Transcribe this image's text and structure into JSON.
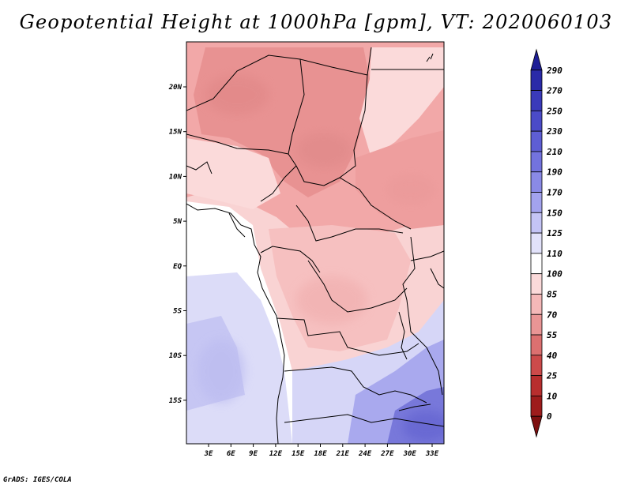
{
  "title": "Geopotential Height at 1000hPa [gpm], VT: 2020060103",
  "footer": "GrADS: IGES/COLA",
  "map": {
    "lat_labels": [
      "20N",
      "15N",
      "10N",
      "5N",
      "EQ",
      "5S",
      "10S",
      "15S"
    ],
    "lon_labels": [
      "3E",
      "6E",
      "9E",
      "12E",
      "15E",
      "18E",
      "21E",
      "24E",
      "27E",
      "30E",
      "33E"
    ]
  },
  "colorbar": {
    "levels": [
      "290",
      "270",
      "250",
      "230",
      "210",
      "190",
      "170",
      "150",
      "125",
      "110",
      "100",
      "85",
      "70",
      "55",
      "40",
      "25",
      "10",
      "0"
    ],
    "colors": [
      "#1e1e96",
      "#2a2aa8",
      "#3a3aba",
      "#4b4bc8",
      "#5e5ed4",
      "#7373de",
      "#8a8ae6",
      "#a3a3ee",
      "#c4c4f5",
      "#e2e2fa",
      "#ffffff",
      "#fbdada",
      "#f4b8b8",
      "#e99595",
      "#dc7070",
      "#cc4a4a",
      "#b82e2e",
      "#9e1c1c",
      "#7e1010"
    ]
  }
}
